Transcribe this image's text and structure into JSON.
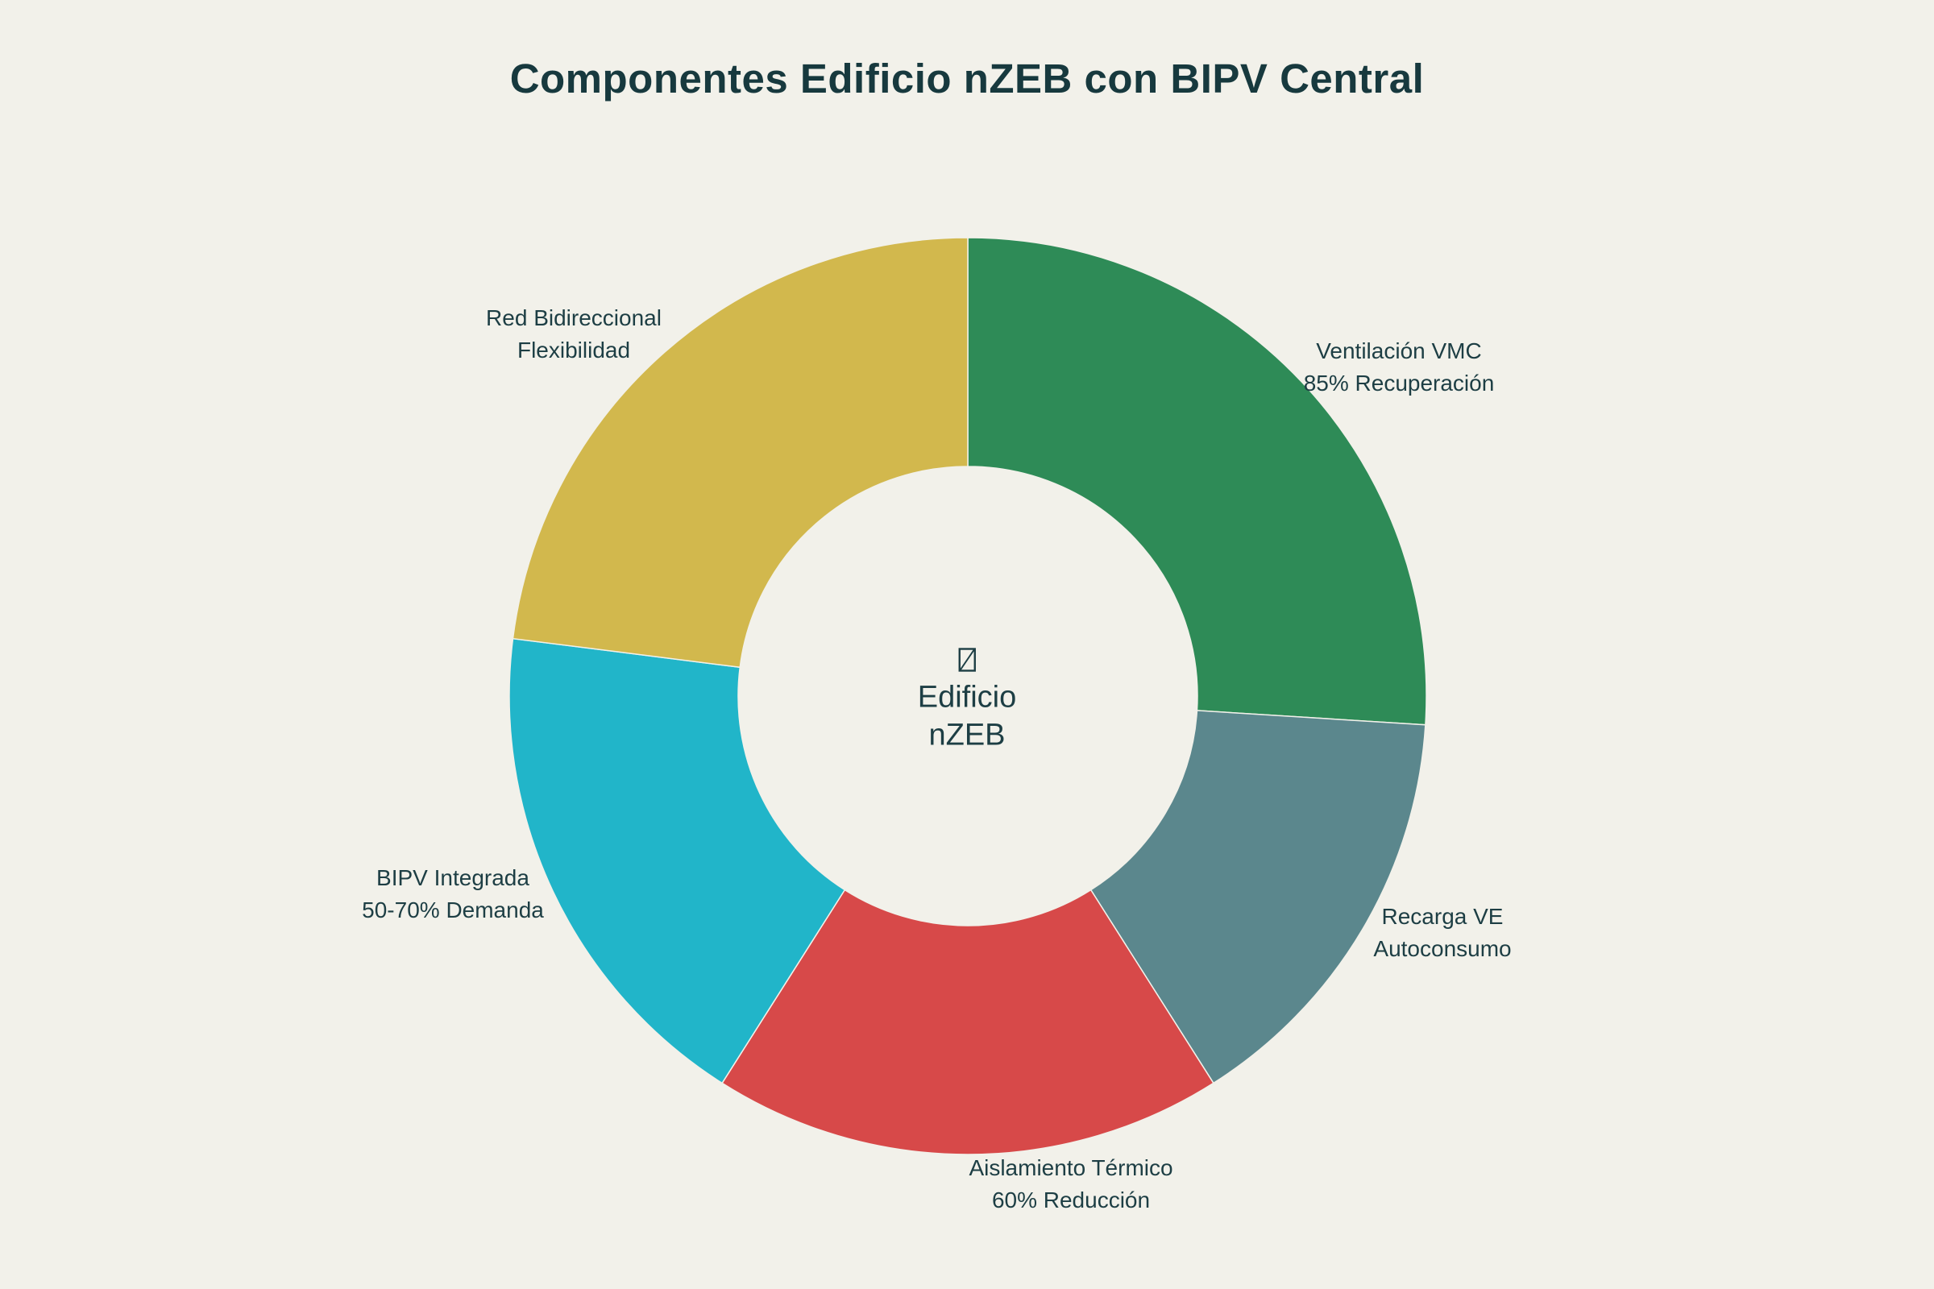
{
  "page": {
    "background_color": "#F2F1EA",
    "text_color": "#1D3E44",
    "title_color": "#17393E"
  },
  "chart_data": {
    "type": "pie",
    "subtype": "donut",
    "title": "Componentes Edificio nZEB con BIPV Central",
    "hole_ratio": 0.5,
    "direction": "clockwise",
    "start_angle_deg": 0,
    "legend": "none",
    "center_label": {
      "icon": "missing-glyph-box",
      "line1": "Edificio",
      "line2": "nZEB"
    },
    "segments": [
      {
        "label": "Ventilación VMC",
        "sublabel": "85% Recuperación",
        "value_pct": 26,
        "color": "#2E8B57"
      },
      {
        "label": "Recarga VE",
        "sublabel": "Autoconsumo",
        "value_pct": 15,
        "color": "#5B878D"
      },
      {
        "label": "Aislamiento Térmico",
        "sublabel": "60% Reducción",
        "value_pct": 18,
        "color": "#D74949"
      },
      {
        "label": "BIPV Integrada",
        "sublabel": "50-70% Demanda",
        "value_pct": 18,
        "color": "#21B5C9"
      },
      {
        "label": "Red Bidireccional",
        "sublabel": "Flexibilidad",
        "value_pct": 23,
        "color": "#D2B84D"
      }
    ]
  }
}
